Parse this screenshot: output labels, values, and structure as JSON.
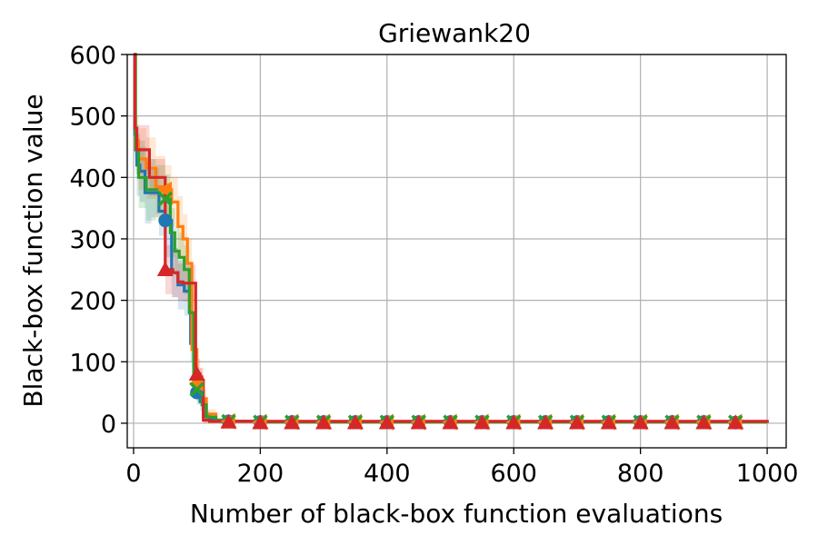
{
  "chart_data": {
    "type": "line",
    "title": "Griewank20",
    "xlabel": "Number of black-box function evaluations",
    "ylabel": "Black-box function value",
    "xlim": [
      -10,
      1030
    ],
    "ylim": [
      -40,
      600
    ],
    "xticks": [
      0,
      200,
      400,
      600,
      800,
      1000
    ],
    "yticks": [
      0,
      100,
      200,
      300,
      400,
      500,
      600
    ],
    "xtick_labels": [
      "0",
      "200",
      "400",
      "600",
      "800",
      "1000"
    ],
    "ytick_labels": [
      "0",
      "100",
      "200",
      "300",
      "400",
      "500",
      "600"
    ],
    "grid": true,
    "legend": "none",
    "series": [
      {
        "color": "#1f77b4",
        "marker": "circle",
        "x": [
          0,
          2,
          5,
          10,
          18,
          28,
          40,
          50,
          60,
          70,
          80,
          90,
          95,
          100,
          105,
          110,
          120,
          130,
          150,
          200,
          300,
          1000
        ],
        "y": [
          600,
          470,
          420,
          410,
          375,
          375,
          345,
          330,
          245,
          225,
          215,
          130,
          70,
          50,
          35,
          12,
          6,
          4,
          3,
          2,
          2,
          1
        ],
        "band": [
          0,
          40,
          50,
          50,
          50,
          40,
          40,
          60,
          40,
          40,
          40,
          30,
          25,
          20,
          15,
          8,
          4,
          3,
          2,
          1,
          1,
          1
        ],
        "marker_x": [
          50,
          100,
          150,
          200,
          250,
          300,
          350,
          400,
          450,
          500,
          550,
          600,
          650,
          700,
          750,
          800,
          850,
          900,
          950
        ],
        "marker_y": [
          330,
          50,
          3,
          2,
          2,
          2,
          2,
          2,
          2,
          2,
          2,
          2,
          2,
          2,
          2,
          2,
          2,
          2,
          1
        ]
      },
      {
        "color": "#ff7f0e",
        "marker": "triangle-left",
        "x": [
          0,
          3,
          8,
          20,
          35,
          50,
          60,
          70,
          78,
          85,
          92,
          100,
          108,
          115,
          130,
          150,
          200,
          1000
        ],
        "y": [
          600,
          460,
          430,
          415,
          385,
          380,
          360,
          320,
          300,
          260,
          120,
          65,
          40,
          15,
          5,
          3,
          2,
          1
        ],
        "band": [
          0,
          40,
          50,
          50,
          50,
          40,
          40,
          50,
          40,
          40,
          30,
          25,
          15,
          8,
          4,
          2,
          1,
          1
        ],
        "marker_x": [
          50,
          100,
          150,
          200,
          250,
          300,
          350,
          400,
          450,
          500,
          550,
          600,
          650,
          700,
          750,
          800,
          850,
          900,
          950
        ],
        "marker_y": [
          380,
          65,
          3,
          2,
          2,
          2,
          2,
          2,
          2,
          2,
          2,
          2,
          2,
          2,
          2,
          2,
          2,
          2,
          2
        ]
      },
      {
        "color": "#2ca02c",
        "marker": "x",
        "x": [
          0,
          3,
          8,
          20,
          35,
          50,
          58,
          65,
          72,
          80,
          88,
          95,
          100,
          108,
          115,
          130,
          150,
          200,
          1000
        ],
        "y": [
          600,
          445,
          400,
          380,
          380,
          365,
          310,
          280,
          270,
          250,
          180,
          75,
          55,
          30,
          10,
          5,
          3,
          2,
          1
        ],
        "band": [
          0,
          40,
          50,
          50,
          40,
          40,
          40,
          40,
          40,
          40,
          35,
          25,
          20,
          12,
          6,
          3,
          2,
          1,
          1
        ],
        "marker_x": [
          50,
          100,
          150,
          200,
          250,
          300,
          350,
          400,
          450,
          500,
          550,
          600,
          650,
          700,
          750,
          800,
          850,
          900,
          950
        ],
        "marker_y": [
          365,
          55,
          3,
          2,
          2,
          2,
          2,
          2,
          2,
          2,
          2,
          2,
          2,
          2,
          2,
          2,
          2,
          2,
          2
        ]
      },
      {
        "color": "#d62728",
        "marker": "triangle-up",
        "x": [
          0,
          2,
          5,
          15,
          25,
          40,
          50,
          55,
          62,
          70,
          78,
          90,
          98,
          105,
          110,
          120,
          1000
        ],
        "y": [
          600,
          480,
          445,
          445,
          400,
          400,
          250,
          250,
          245,
          230,
          228,
          228,
          80,
          70,
          5,
          3,
          1
        ],
        "band": [
          0,
          40,
          40,
          40,
          30,
          30,
          40,
          40,
          40,
          30,
          30,
          30,
          25,
          20,
          5,
          3,
          1
        ],
        "marker_x": [
          50,
          100,
          150,
          200,
          250,
          300,
          350,
          400,
          450,
          500,
          550,
          600,
          650,
          700,
          750,
          800,
          850,
          900,
          950
        ],
        "marker_y": [
          250,
          80,
          2,
          1,
          1,
          1,
          1,
          1,
          1,
          1,
          1,
          1,
          1,
          1,
          1,
          1,
          1,
          1,
          1
        ]
      }
    ]
  }
}
